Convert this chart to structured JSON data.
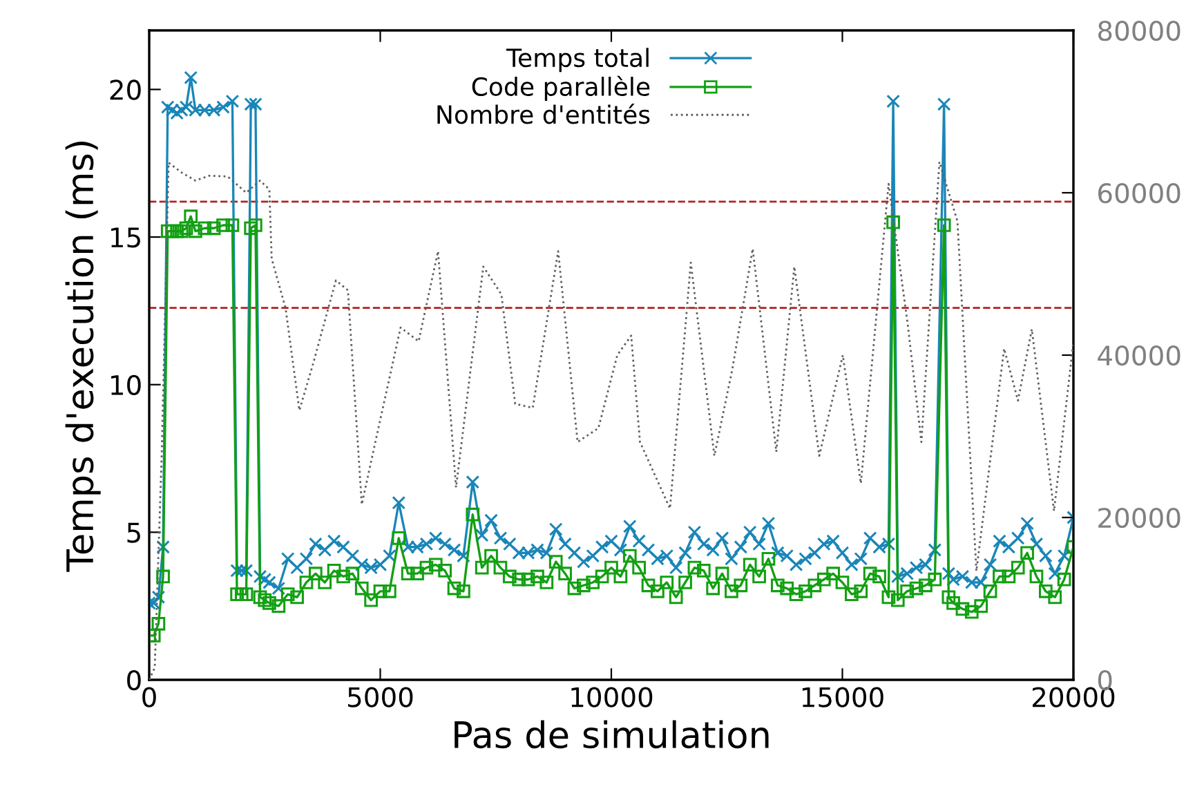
{
  "chart_data": {
    "type": "line",
    "xlabel": "Pas de simulation",
    "ylabel": "Temps d'execution (ms)",
    "xlim": [
      0,
      20000
    ],
    "xticks": [
      0,
      5000,
      10000,
      15000,
      20000
    ],
    "ylim": [
      0,
      22
    ],
    "yticks": [
      0,
      5,
      10,
      15,
      20
    ],
    "y2lim": [
      0,
      80000
    ],
    "y2ticks": [
      0,
      20000,
      40000,
      60000,
      80000
    ],
    "legend": "top",
    "grid": false,
    "x": [
      0,
      100,
      200,
      300,
      400,
      500,
      600,
      700,
      800,
      900,
      1000,
      1200,
      1400,
      1600,
      1800,
      1900,
      2000,
      2100,
      2200,
      2300,
      2400,
      2500,
      2600,
      2800,
      3000,
      3200,
      3400,
      3600,
      3800,
      4000,
      4200,
      4400,
      4600,
      4800,
      5000,
      5200,
      5400,
      5600,
      5800,
      6000,
      6200,
      6400,
      6600,
      6800,
      7000,
      7200,
      7400,
      7600,
      7800,
      8000,
      8200,
      8400,
      8600,
      8800,
      9000,
      9200,
      9400,
      9600,
      9800,
      10000,
      10200,
      10400,
      10600,
      10800,
      11000,
      11200,
      11400,
      11600,
      11800,
      12000,
      12200,
      12400,
      12600,
      12800,
      13000,
      13200,
      13400,
      13600,
      13800,
      14000,
      14200,
      14400,
      14600,
      14800,
      15000,
      15200,
      15400,
      15600,
      15800,
      16000,
      16100,
      16200,
      16400,
      16600,
      16800,
      17000,
      17200,
      17300,
      17400,
      17600,
      17800,
      18000,
      18200,
      18400,
      18600,
      18800,
      19000,
      19200,
      19400,
      19600,
      19800,
      20000
    ],
    "series": [
      {
        "name": "Temps total",
        "color": "#1a86b8",
        "marker": "cross",
        "line_style": "solid",
        "values": [
          2.6,
          2.6,
          2.8,
          4.5,
          19.4,
          19.3,
          19.2,
          19.3,
          19.4,
          20.4,
          19.3,
          19.3,
          19.3,
          19.4,
          19.6,
          3.7,
          3.7,
          3.7,
          19.5,
          19.5,
          3.5,
          3.4,
          3.3,
          3.1,
          4.1,
          3.8,
          4.1,
          4.6,
          4.4,
          4.7,
          4.5,
          4.2,
          3.9,
          3.8,
          3.9,
          4.2,
          6.0,
          4.5,
          4.5,
          4.6,
          4.8,
          4.6,
          4.4,
          4.2,
          6.7,
          4.9,
          5.4,
          4.8,
          4.6,
          4.3,
          4.3,
          4.4,
          4.3,
          5.1,
          4.6,
          4.3,
          4.0,
          4.2,
          4.5,
          4.7,
          4.4,
          5.2,
          4.7,
          4.4,
          4.1,
          4.2,
          3.8,
          4.3,
          5.0,
          4.6,
          4.4,
          4.8,
          4.1,
          4.5,
          5.0,
          4.6,
          5.3,
          4.3,
          4.2,
          3.9,
          4.1,
          4.3,
          4.6,
          4.7,
          4.3,
          3.9,
          4.1,
          4.8,
          4.5,
          4.6,
          19.6,
          3.5,
          3.6,
          3.8,
          3.9,
          4.4,
          19.5,
          3.6,
          3.4,
          3.5,
          3.3,
          3.3,
          3.9,
          4.7,
          4.5,
          4.8,
          5.3,
          4.6,
          4.2,
          3.6,
          4.2,
          5.5
        ]
      },
      {
        "name": "Code parallèle",
        "color": "#12a012",
        "marker": "square",
        "line_style": "solid",
        "values": [
          1.5,
          1.5,
          1.9,
          3.5,
          15.2,
          15.2,
          15.2,
          15.2,
          15.3,
          15.7,
          15.2,
          15.3,
          15.3,
          15.4,
          15.4,
          2.9,
          2.9,
          2.9,
          15.3,
          15.4,
          2.8,
          2.7,
          2.6,
          2.5,
          2.9,
          2.8,
          3.3,
          3.6,
          3.3,
          3.7,
          3.5,
          3.6,
          3.1,
          2.7,
          3.0,
          3.0,
          4.8,
          3.6,
          3.6,
          3.8,
          3.9,
          3.7,
          3.1,
          3.0,
          5.6,
          3.8,
          4.2,
          3.8,
          3.5,
          3.4,
          3.4,
          3.5,
          3.3,
          4.0,
          3.6,
          3.1,
          3.2,
          3.3,
          3.5,
          3.8,
          3.5,
          4.2,
          3.8,
          3.2,
          3.0,
          3.3,
          2.8,
          3.3,
          3.8,
          3.7,
          3.1,
          3.6,
          3.0,
          3.2,
          3.9,
          3.5,
          4.1,
          3.2,
          3.1,
          2.9,
          3.0,
          3.2,
          3.4,
          3.6,
          3.3,
          2.9,
          3.0,
          3.6,
          3.5,
          2.8,
          15.5,
          2.7,
          3.0,
          3.1,
          3.2,
          3.4,
          15.4,
          2.8,
          2.6,
          2.4,
          2.3,
          2.5,
          3.0,
          3.5,
          3.5,
          3.8,
          4.3,
          3.5,
          3.0,
          2.8,
          3.4,
          4.5
        ]
      },
      {
        "name": "Nombre d'entités",
        "color": "#606060",
        "marker": "none",
        "line_style": "dotted",
        "axis": "y2",
        "x": [
          0,
          120,
          270,
          420,
          700,
          1000,
          1300,
          1700,
          2100,
          2400,
          2600,
          2650,
          2950,
          3250,
          3550,
          4040,
          4300,
          4600,
          4940,
          5440,
          5830,
          6250,
          6640,
          7230,
          7620,
          7920,
          8300,
          8850,
          9270,
          9720,
          10130,
          10430,
          10620,
          11270,
          11720,
          12230,
          12620,
          13060,
          13570,
          13960,
          14500,
          15010,
          15400,
          16000,
          16410,
          16710,
          17100,
          17490,
          17900,
          18500,
          18800,
          19100,
          19580,
          20000
        ],
        "values": [
          0,
          1500,
          27600,
          63700,
          62500,
          61500,
          62100,
          62000,
          60000,
          61500,
          60400,
          51900,
          45800,
          33200,
          39000,
          49200,
          48000,
          21600,
          30500,
          43400,
          41700,
          52800,
          23700,
          50900,
          47500,
          34000,
          33500,
          52800,
          29300,
          31000,
          40000,
          42400,
          29300,
          21100,
          51400,
          27600,
          38300,
          53100,
          28100,
          50900,
          27600,
          40000,
          24200,
          61100,
          44000,
          29300,
          63800,
          56500,
          13400,
          40800,
          34400,
          43200,
          20800,
          41700
        ]
      }
    ],
    "ref_lines": [
      {
        "axis": "y",
        "value": 16.2,
        "color": "#b22222",
        "line_style": "dashed"
      },
      {
        "axis": "y",
        "value": 12.6,
        "color": "#b22222",
        "line_style": "dashed"
      }
    ]
  }
}
